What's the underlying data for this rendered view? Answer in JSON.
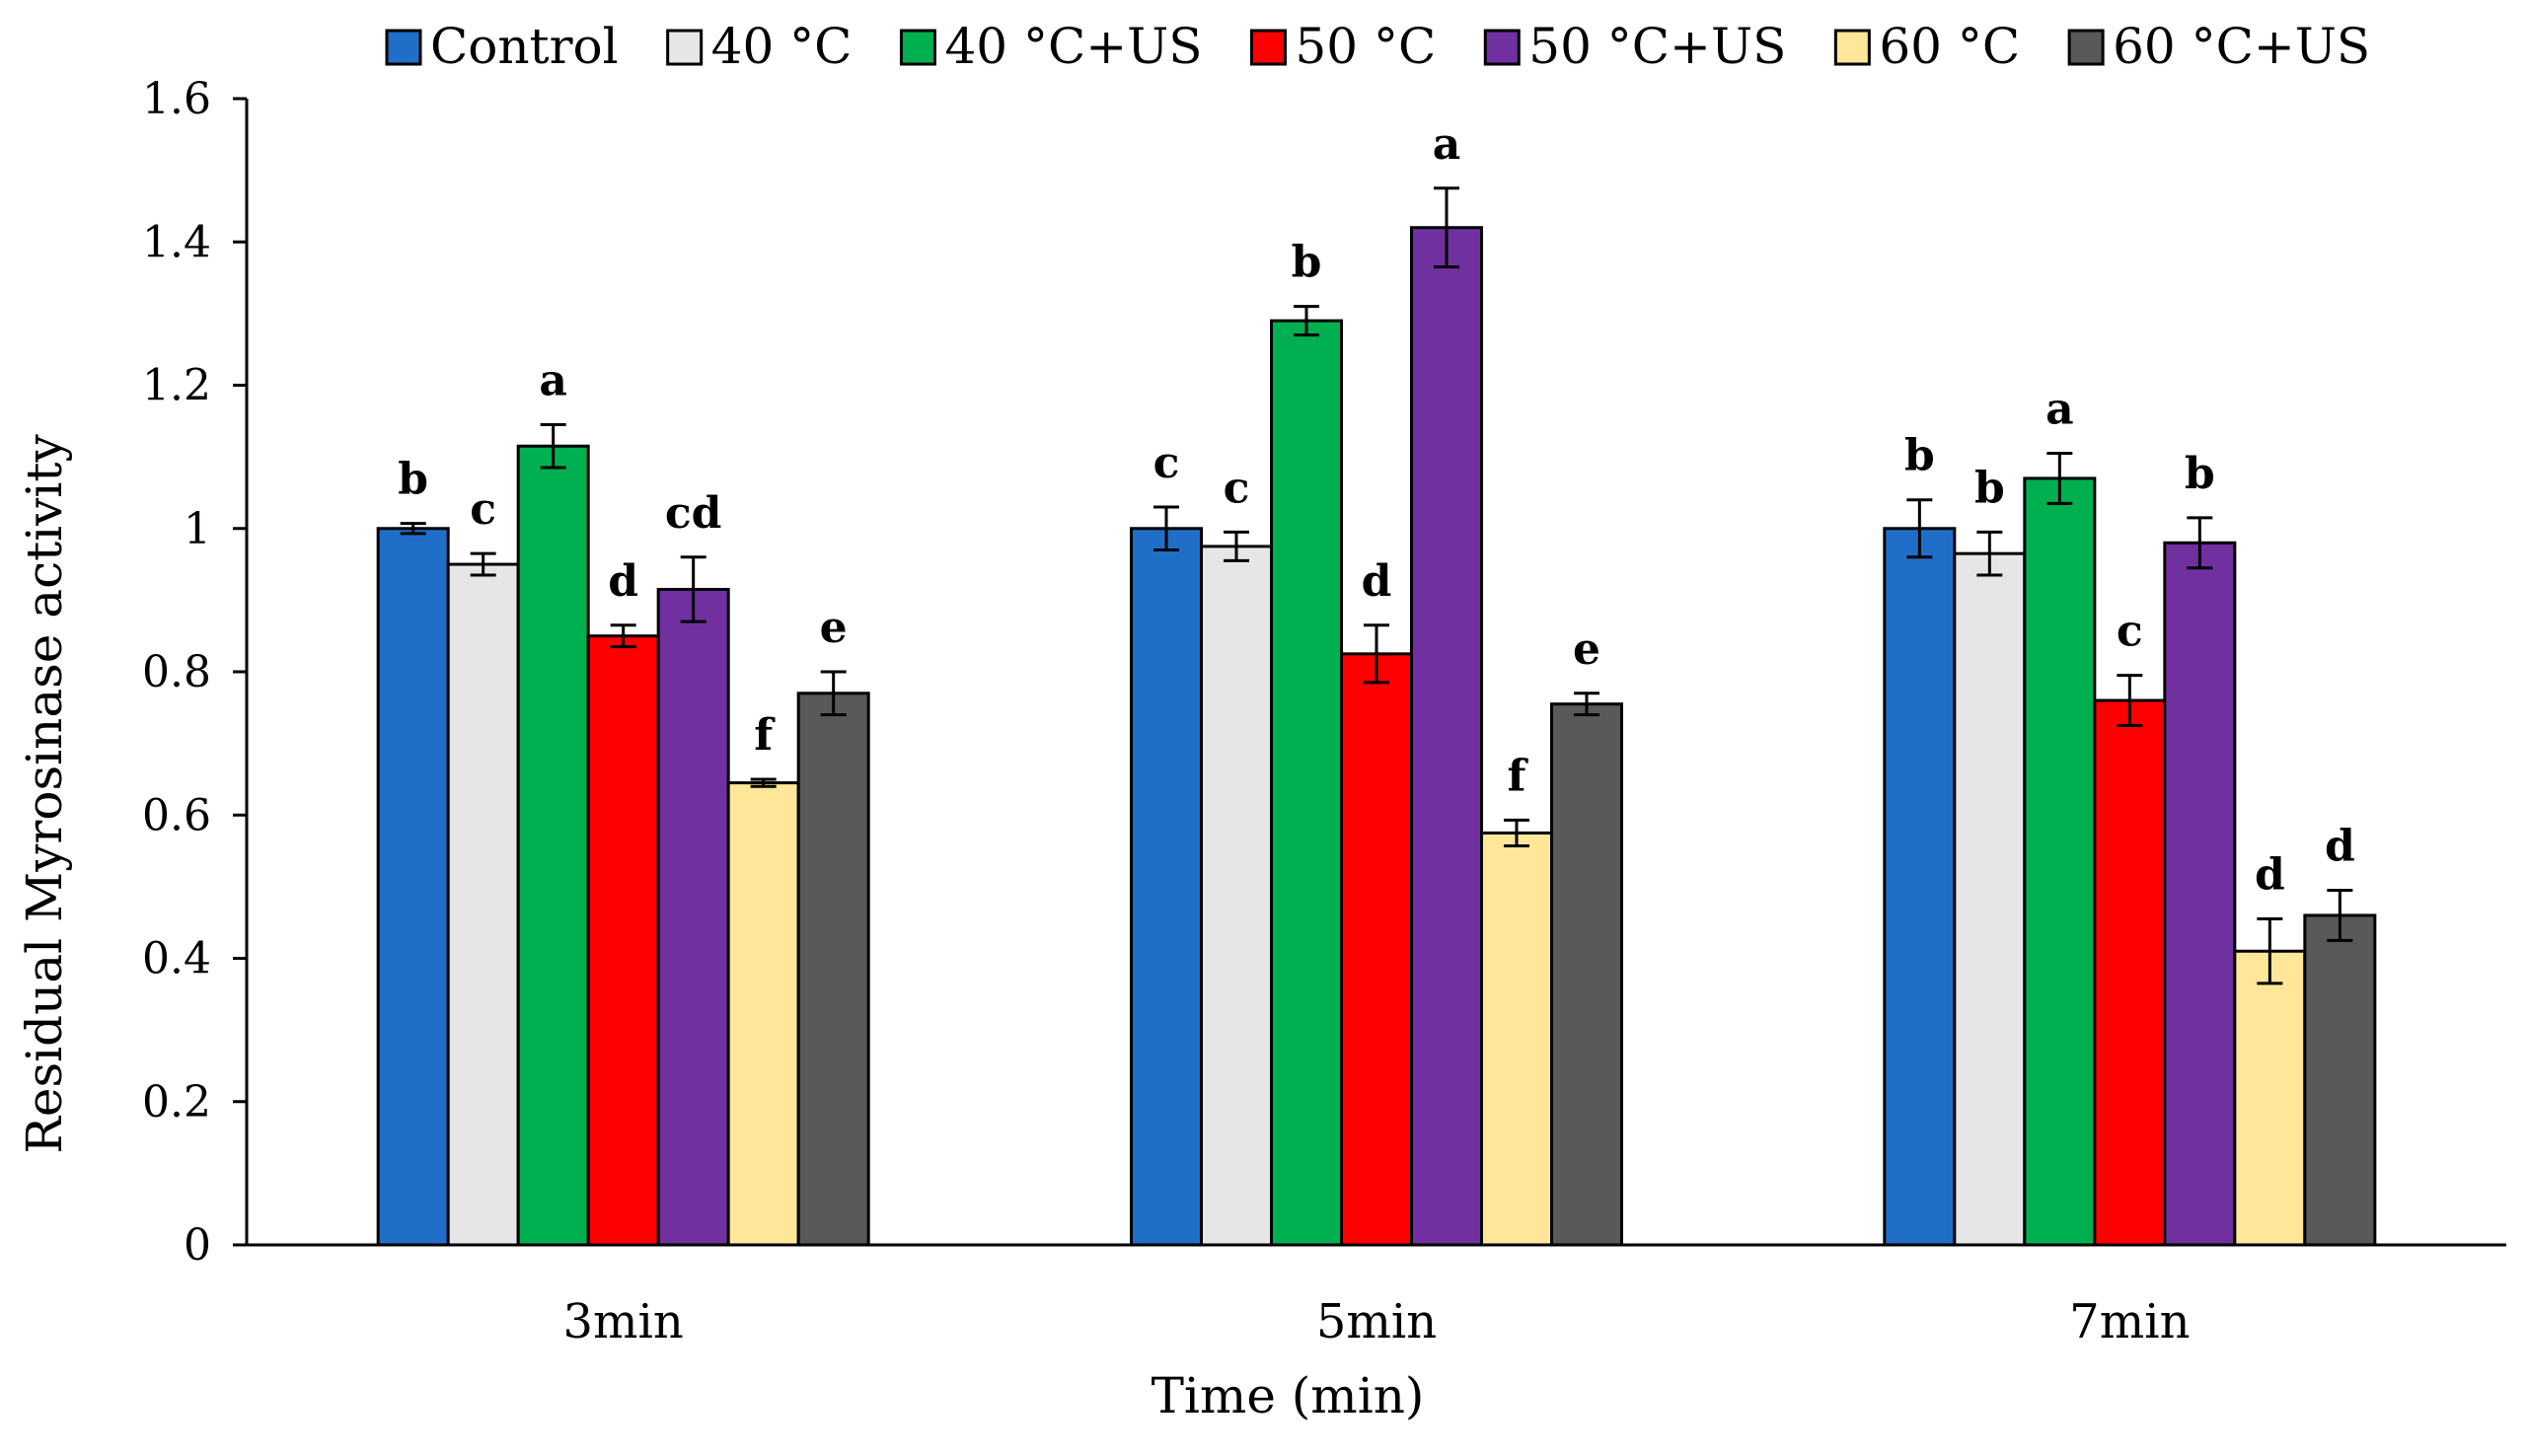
{
  "chart_data": {
    "type": "bar",
    "title": "",
    "xlabel": "Time (min)",
    "ylabel": "Residual Myrosinase activity",
    "ylim": [
      0,
      1.6
    ],
    "yticks": [
      0,
      0.2,
      0.4,
      0.6,
      0.8,
      1,
      1.2,
      1.4,
      1.6
    ],
    "ytick_labels": [
      "0",
      "0.2",
      "0.4",
      "0.6",
      "0.8",
      "1",
      "1.2",
      "1.4",
      "1.6"
    ],
    "grid": false,
    "legend_position": "top",
    "categories": [
      "3min",
      "5min",
      "7min"
    ],
    "series": [
      {
        "name": "Control",
        "color": "#1f6fc9",
        "values": [
          1.0,
          1.0,
          1.0
        ],
        "errors": [
          0.007,
          0.03,
          0.04
        ],
        "labels": [
          "b",
          "c",
          "b"
        ]
      },
      {
        "name": "40 °C",
        "color": "#e6e6e6",
        "values": [
          0.95,
          0.975,
          0.965
        ],
        "errors": [
          0.015,
          0.02,
          0.03
        ],
        "labels": [
          "c",
          "c",
          "b"
        ]
      },
      {
        "name": "40 °C+US",
        "color": "#00b050",
        "values": [
          1.115,
          1.29,
          1.07
        ],
        "errors": [
          0.03,
          0.02,
          0.035
        ],
        "labels": [
          "a",
          "b",
          "a"
        ]
      },
      {
        "name": "50 °C",
        "color": "#ff0000",
        "values": [
          0.85,
          0.825,
          0.76
        ],
        "errors": [
          0.015,
          0.04,
          0.035
        ],
        "labels": [
          "d",
          "d",
          "c"
        ]
      },
      {
        "name": "50 °C+US",
        "color": "#7030a0",
        "values": [
          0.915,
          1.42,
          0.98
        ],
        "errors": [
          0.045,
          0.055,
          0.035
        ],
        "labels": [
          "cd",
          "a",
          "b"
        ]
      },
      {
        "name": "60 °C",
        "color": "#ffe699",
        "values": [
          0.645,
          0.575,
          0.41
        ],
        "errors": [
          0.005,
          0.018,
          0.045
        ],
        "labels": [
          "f",
          "f",
          "d"
        ]
      },
      {
        "name": "60 °C+US",
        "color": "#595959",
        "values": [
          0.77,
          0.755,
          0.46
        ],
        "errors": [
          0.03,
          0.015,
          0.035
        ],
        "labels": [
          "e",
          "e",
          "d"
        ]
      }
    ]
  }
}
